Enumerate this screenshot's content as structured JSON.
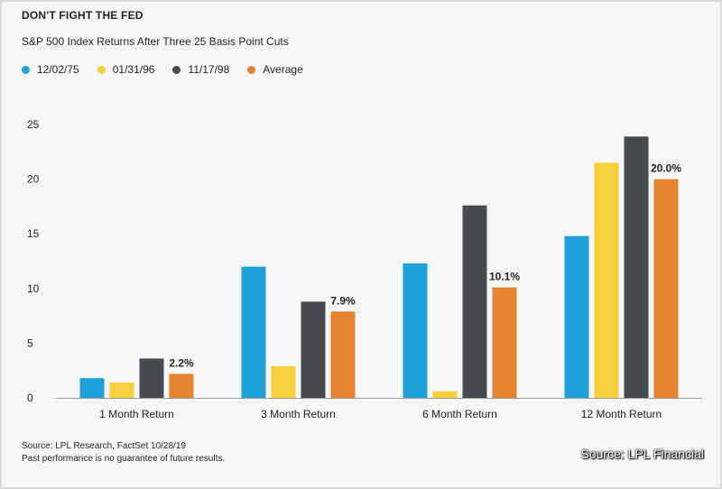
{
  "chart_data": {
    "type": "bar",
    "title": "DON'T FIGHT THE FED",
    "subtitle": "S&P 500 Index Returns After Three 25 Basis Point Cuts",
    "categories": [
      "1 Month Return",
      "3 Month Return",
      "6 Month Return",
      "12 Month Return"
    ],
    "series": [
      {
        "name": "12/02/75",
        "color": "#1fa1db",
        "values": [
          1.8,
          12.0,
          12.3,
          14.8
        ]
      },
      {
        "name": "01/31/96",
        "color": "#f5cf3c",
        "values": [
          1.4,
          2.9,
          0.6,
          21.5
        ]
      },
      {
        "name": "11/17/98",
        "color": "#474a50",
        "values": [
          3.6,
          8.8,
          17.6,
          23.9
        ]
      },
      {
        "name": "Average",
        "color": "#e5832f",
        "values": [
          2.2,
          7.9,
          10.1,
          20.0
        ]
      }
    ],
    "data_labels": [
      "2.2%",
      "7.9%",
      "10.1%",
      "20.0%"
    ],
    "yticks": [
      0,
      5,
      10,
      15,
      20,
      25
    ],
    "ylim": [
      0,
      25
    ],
    "xlabel": "",
    "ylabel": "",
    "grid": false,
    "legend": "top-left"
  },
  "footer": {
    "source": "Source: LPL Research, FactSet  10/28/19",
    "disclaimer": "Past performance is no guarantee of future results."
  },
  "credit": "Source: LPL Financial"
}
